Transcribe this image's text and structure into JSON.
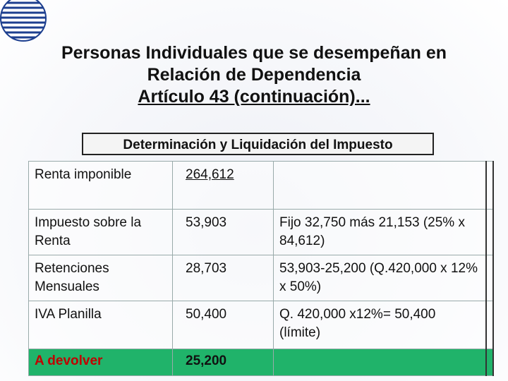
{
  "header": {
    "title_lines": [
      "Personas Individuales que se desempeñan en",
      "Relación de Dependencia",
      "Artículo 43 (continuación)..."
    ],
    "subtitle": "Determinación  y Liquidación del Impuesto"
  },
  "table": {
    "rows": [
      [
        "Renta imponible",
        "264,612",
        ""
      ],
      [
        "Impuesto sobre la Renta",
        "53,903",
        "Fijo 32,750 más 21,153 (25% x 84,612)"
      ],
      [
        "Retenciones Mensuales",
        "28,703",
        "53,903-25,200 (Q.420,000 x 12% x 50%)"
      ],
      [
        "IVA Planilla",
        "50,400",
        "Q. 420,000 x12%= 50,400 (límite)"
      ],
      [
        "A devolver",
        "25,200",
        ""
      ]
    ]
  }
}
